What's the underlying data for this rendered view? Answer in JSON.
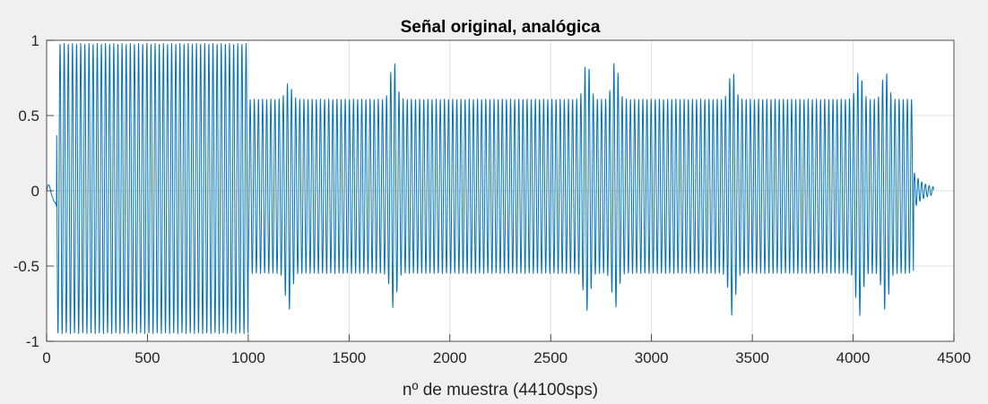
{
  "chart_data": {
    "type": "line",
    "title": "Señal original, analógica",
    "xlabel": "nº de muestra (44100sps)",
    "ylabel": "",
    "xlim": [
      0,
      4500
    ],
    "ylim": [
      -1,
      1
    ],
    "xticks": [
      0,
      500,
      1000,
      1500,
      2000,
      2500,
      3000,
      3500,
      4000,
      4500
    ],
    "xtick_labels": [
      "0",
      "500",
      "1000",
      "1500",
      "2000",
      "2500",
      "3000",
      "3500",
      "4000",
      "4500"
    ],
    "yticks": [
      1,
      0.5,
      0,
      -0.5,
      -1
    ],
    "ytick_labels": [
      "1",
      "0.5",
      "0",
      "-0.5",
      "-1"
    ],
    "grid": true,
    "legend": "none",
    "background": "#f0f0f0",
    "axes_background": "#ffffff",
    "line_color": "#0072bd",
    "signal_period_samples": 20.5,
    "series": [
      {
        "segments": [
          {
            "x_start": 0,
            "x_end": 50,
            "amp_max": 0.04,
            "amp_min": -0.15,
            "description": "onset"
          },
          {
            "x_start": 50,
            "x_end": 1000,
            "amp_max": 0.98,
            "amp_min": -0.95,
            "description": "high amplitude tone"
          },
          {
            "x_start": 1000,
            "x_end": 4300,
            "amp_max": 0.61,
            "amp_min": -0.55,
            "description": "steady tone with transients"
          },
          {
            "x_start": 4300,
            "x_end": 4500,
            "amp_max": 0.13,
            "amp_min": -0.3,
            "description": "decay"
          }
        ],
        "transients": [
          {
            "x": 1200,
            "peak": 0.72,
            "trough": -0.8
          },
          {
            "x": 1720,
            "peak": 0.87,
            "trough": -0.78
          },
          {
            "x": 2680,
            "peak": 0.87,
            "trough": -0.8
          },
          {
            "x": 2820,
            "peak": 0.87,
            "trough": -0.78
          },
          {
            "x": 3400,
            "peak": 0.8,
            "trough": -0.83
          },
          {
            "x": 4030,
            "peak": 0.8,
            "trough": -0.84
          },
          {
            "x": 4160,
            "peak": 0.8,
            "trough": -0.8
          }
        ]
      }
    ]
  }
}
